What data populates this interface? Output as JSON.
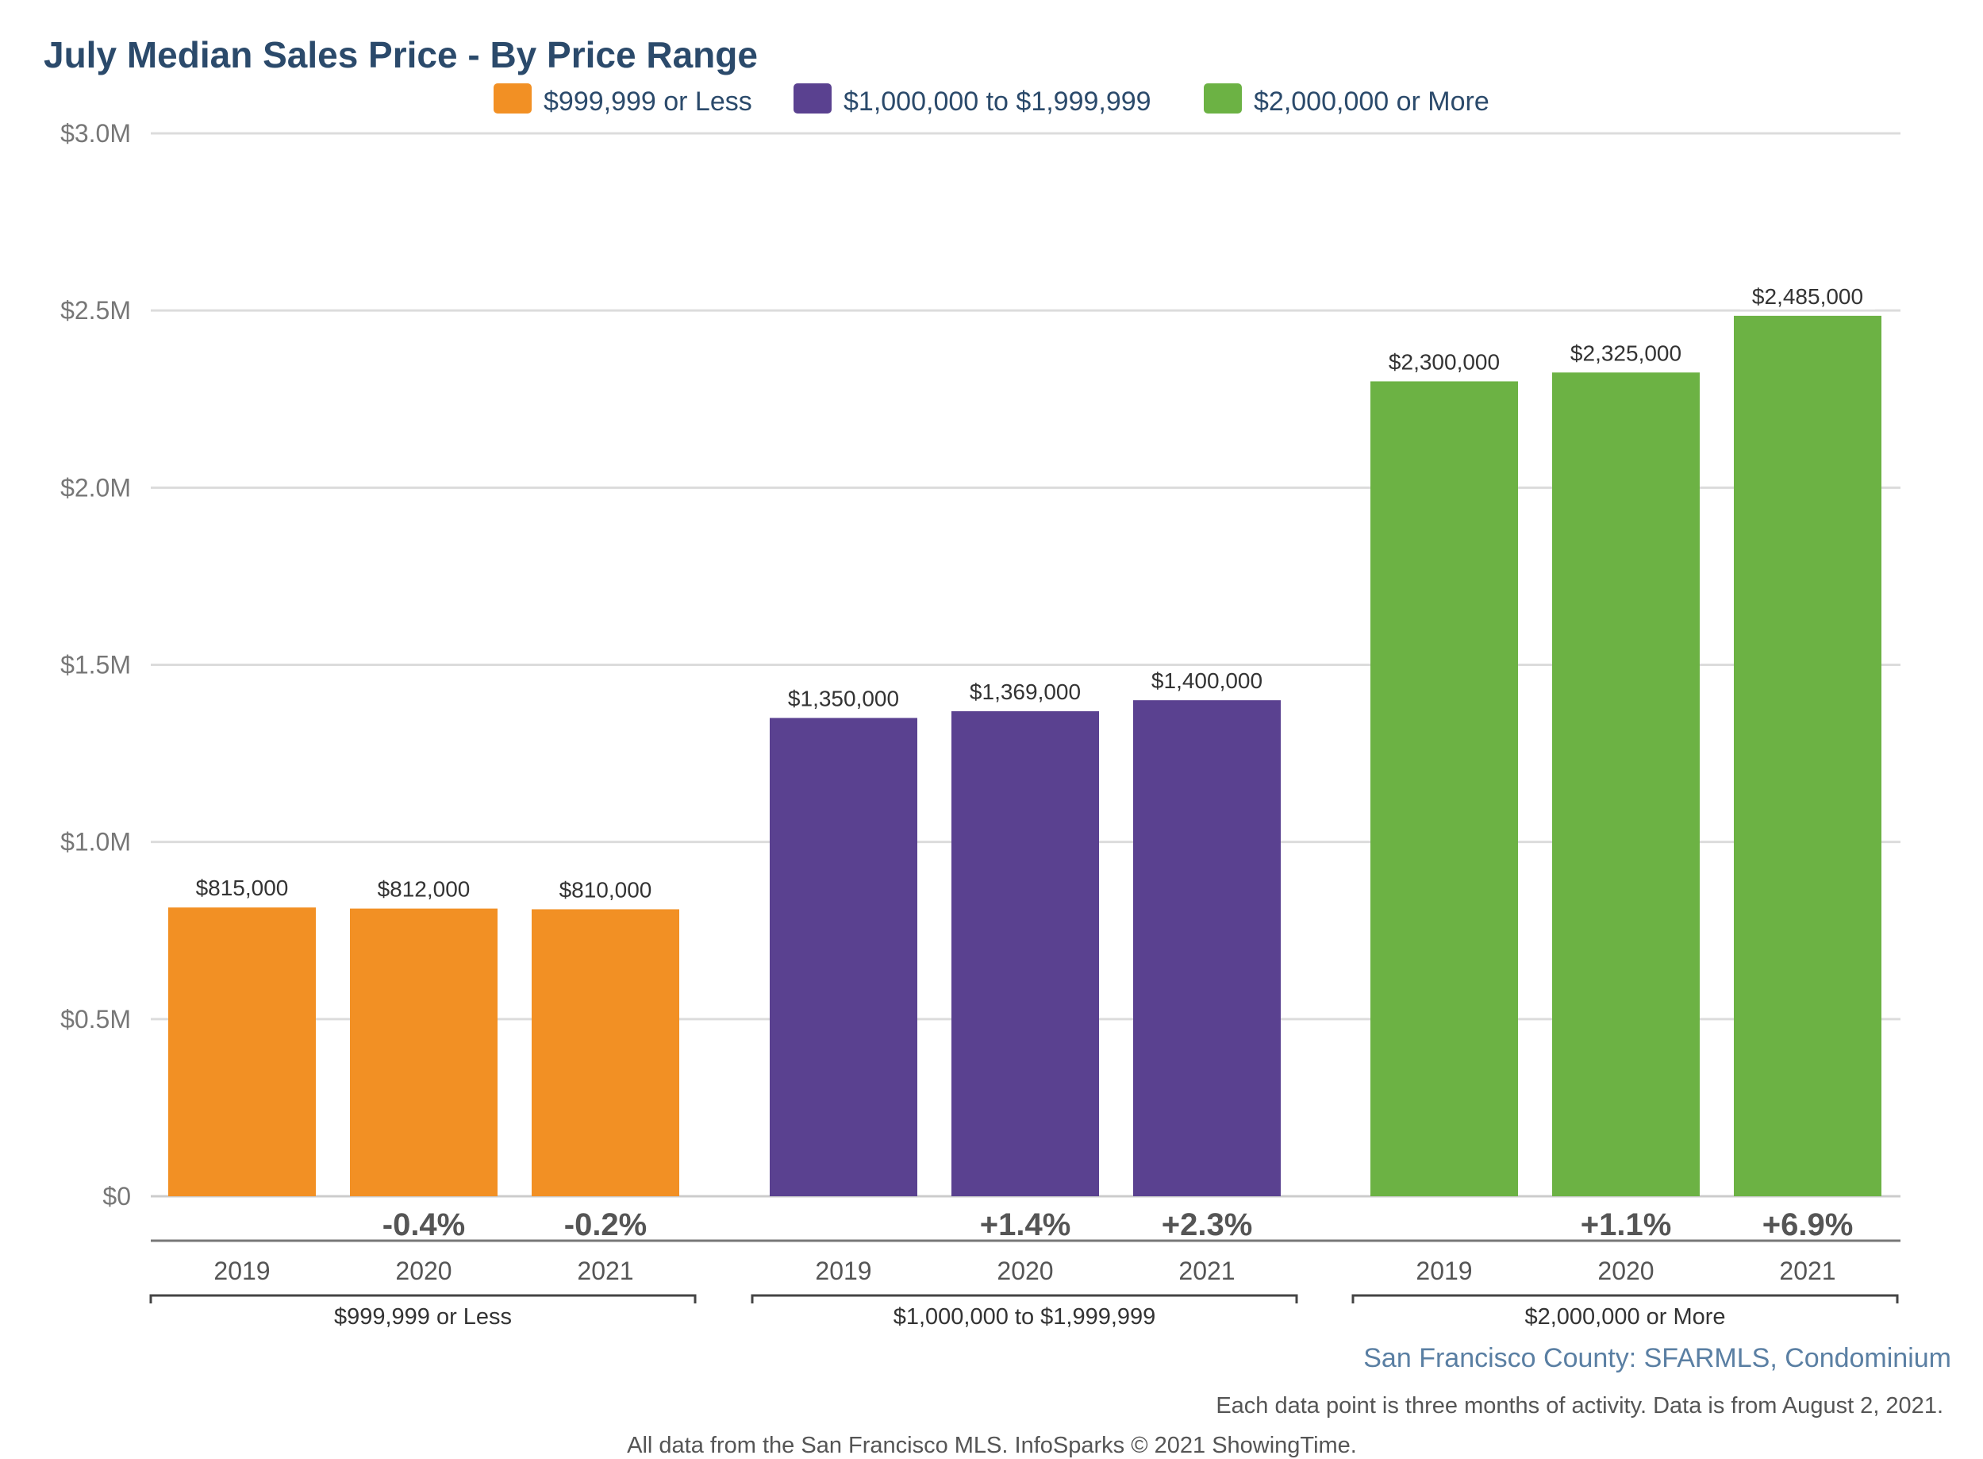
{
  "chart_data": {
    "type": "bar",
    "title": "July Median Sales Price - By Price Range",
    "ylim": [
      0,
      3000000
    ],
    "y_ticks": [
      {
        "value": 0,
        "label": "$0"
      },
      {
        "value": 500000,
        "label": "$0.5M"
      },
      {
        "value": 1000000,
        "label": "$1.0M"
      },
      {
        "value": 1500000,
        "label": "$1.5M"
      },
      {
        "value": 2000000,
        "label": "$2.0M"
      },
      {
        "value": 2500000,
        "label": "$2.5M"
      },
      {
        "value": 3000000,
        "label": "$3.0M"
      }
    ],
    "grid": true,
    "legend_position": "top-center",
    "categories": [
      "2019",
      "2020",
      "2021"
    ],
    "groups": [
      {
        "name": "$999,999 or Less",
        "color": "#f29024",
        "values": [
          815000,
          812000,
          810000
        ],
        "value_labels": [
          "$815,000",
          "$812,000",
          "$810,000"
        ],
        "changes": [
          "",
          "-0.4%",
          "-0.2%"
        ]
      },
      {
        "name": "$1,000,000 to $1,999,999",
        "color": "#5a4190",
        "values": [
          1350000,
          1369000,
          1400000
        ],
        "value_labels": [
          "$1,350,000",
          "$1,369,000",
          "$1,400,000"
        ],
        "changes": [
          "",
          "+1.4%",
          "+2.3%"
        ]
      },
      {
        "name": "$2,000,000 or More",
        "color": "#6cb244",
        "values": [
          2300000,
          2325000,
          2485000
        ],
        "value_labels": [
          "$2,300,000",
          "$2,325,000",
          "$2,485,000"
        ],
        "changes": [
          "",
          "+1.1%",
          "+6.9%"
        ]
      }
    ]
  },
  "footer": {
    "source": "San Francisco County: SFARMLS, Condominium",
    "note": "Each data point is three months of activity. Data is from August 2, 2021.",
    "credit": "All data from the San Francisco MLS. InfoSparks © 2021 ShowingTime."
  }
}
